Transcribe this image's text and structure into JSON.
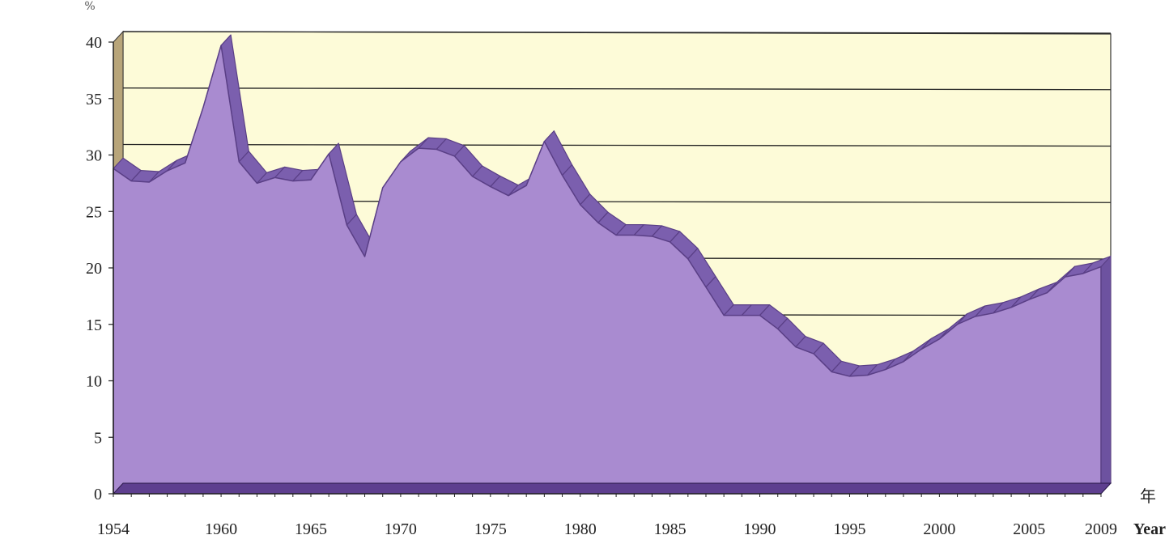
{
  "chart_data": {
    "type": "area",
    "y_unit": "%",
    "x_unit_cn": "年",
    "x_unit_en": "Year",
    "ylim": [
      0,
      40
    ],
    "y_ticks": [
      "0",
      "5",
      "10",
      "15",
      "20",
      "25",
      "30",
      "35",
      "40"
    ],
    "x_ticks": [
      "1954",
      "1960",
      "1965",
      "1970",
      "1975",
      "1980",
      "1985",
      "1990",
      "1995",
      "2000",
      "2005",
      "2009"
    ],
    "grid": true,
    "colors": {
      "area": "#a98bd0",
      "edge": "#5a3f86",
      "plot_bg": "#fdfbd8",
      "grid": "#222222",
      "floor": "#5e3f8f"
    },
    "x": [
      1954,
      1955,
      1956,
      1957,
      1958,
      1959,
      1960,
      1961,
      1962,
      1963,
      1964,
      1965,
      1966,
      1967,
      1968,
      1969,
      1970,
      1971,
      1972,
      1973,
      1974,
      1975,
      1976,
      1977,
      1978,
      1979,
      1980,
      1981,
      1982,
      1983,
      1984,
      1985,
      1986,
      1987,
      1988,
      1989,
      1990,
      1991,
      1992,
      1993,
      1994,
      1995,
      1996,
      1997,
      1998,
      1999,
      2000,
      2001,
      2002,
      2003,
      2004,
      2005,
      2006,
      2007,
      2008,
      2009
    ],
    "values": [
      28.8,
      27.7,
      27.6,
      28.6,
      29.3,
      34.2,
      39.7,
      29.4,
      27.5,
      28.0,
      27.7,
      27.8,
      30.1,
      23.8,
      21.0,
      27.1,
      29.4,
      30.6,
      30.5,
      29.9,
      28.1,
      27.2,
      26.4,
      27.3,
      31.2,
      28.2,
      25.6,
      24.0,
      22.9,
      22.9,
      22.8,
      22.3,
      20.8,
      18.3,
      15.8,
      15.8,
      15.8,
      14.6,
      13.0,
      12.4,
      10.8,
      10.4,
      10.5,
      11.0,
      11.7,
      12.8,
      13.7,
      15.0,
      15.7,
      16.0,
      16.5,
      17.2,
      17.8,
      19.2,
      19.5,
      20.1
    ]
  }
}
